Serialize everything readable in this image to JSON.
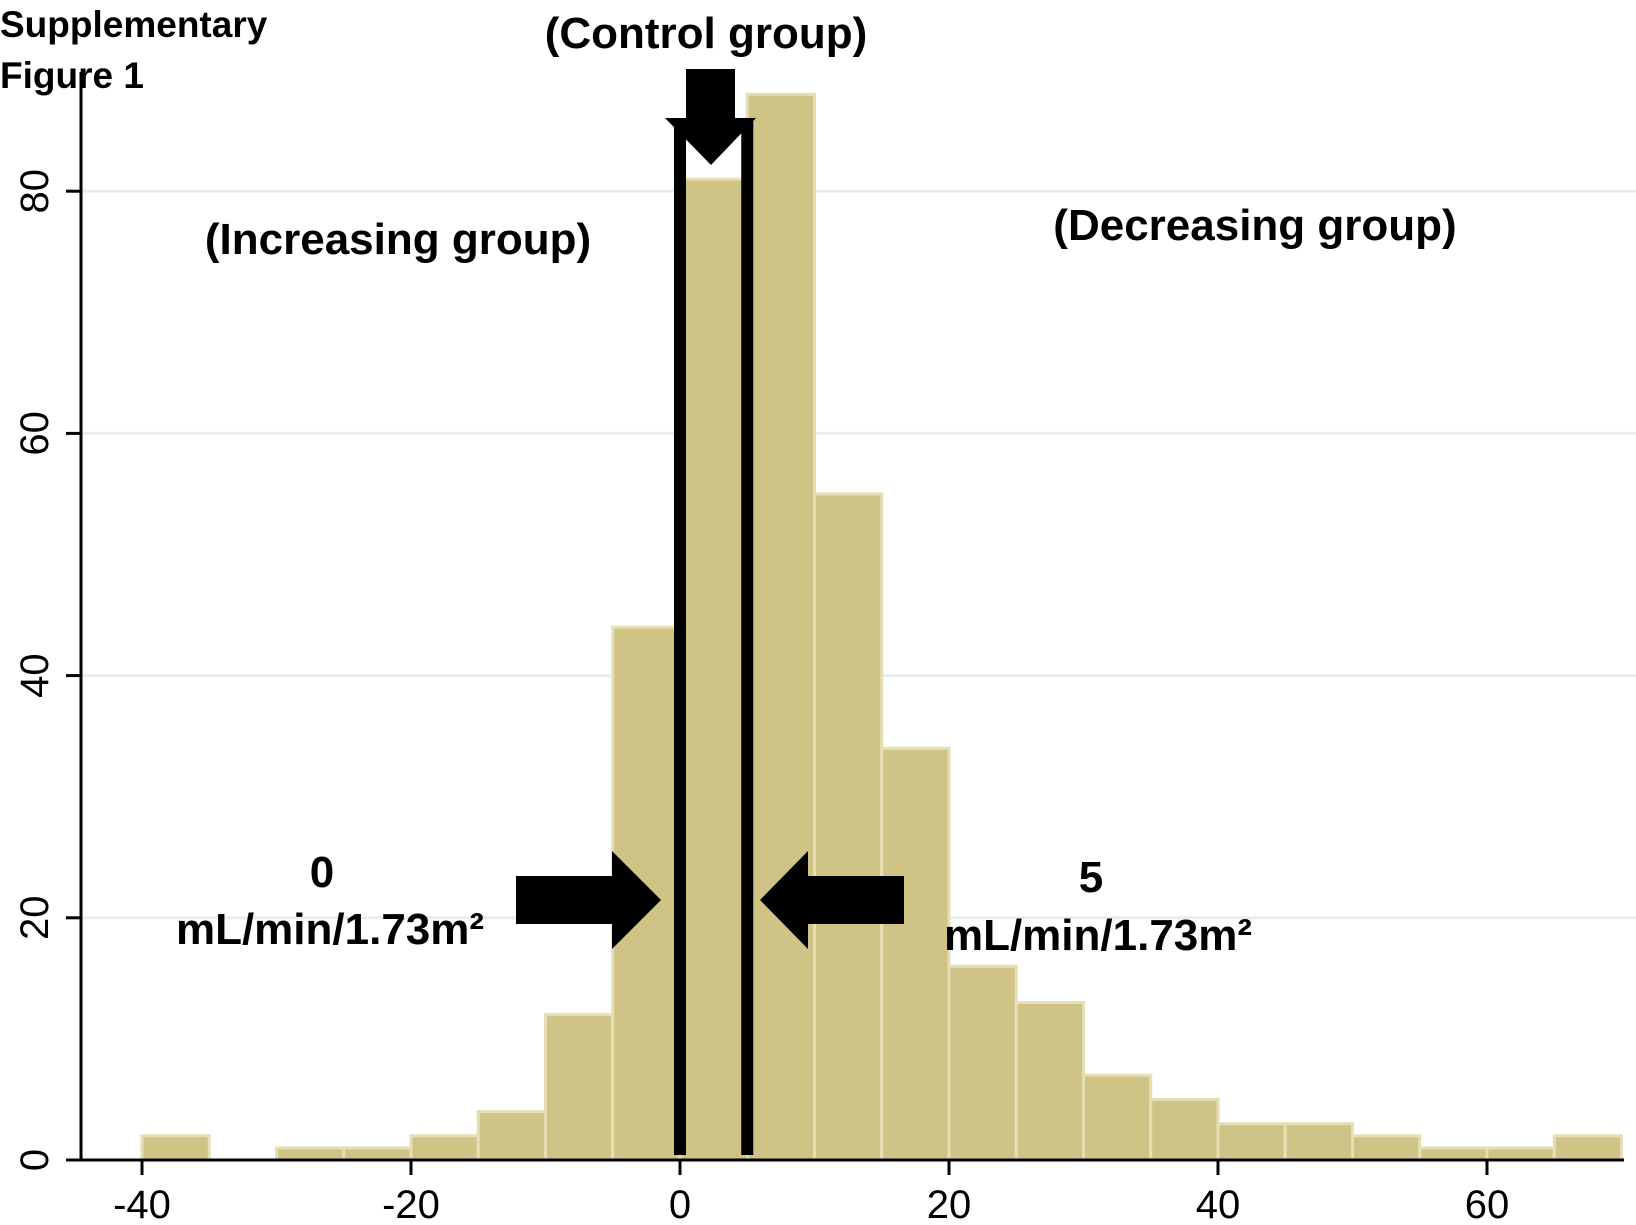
{
  "figure_label_line1": "Supplementary",
  "figure_label_line2": "Figure 1",
  "chart_data": {
    "type": "bar",
    "subtype": "histogram",
    "bin_width": 5,
    "bin_starts": [
      -40,
      -35,
      -30,
      -25,
      -20,
      -15,
      -10,
      -5,
      0,
      5,
      10,
      15,
      20,
      25,
      30,
      35,
      40,
      45,
      50,
      55,
      60,
      65
    ],
    "values": [
      2,
      0,
      1,
      1,
      2,
      4,
      12,
      44,
      81,
      88,
      55,
      34,
      16,
      13,
      7,
      5,
      3,
      3,
      2,
      1,
      1,
      2
    ],
    "xlim": [
      -45,
      70
    ],
    "ylim": [
      0,
      88
    ],
    "x_ticks": [
      "-40",
      "-20",
      "0",
      "20",
      "40",
      "60"
    ],
    "y_ticks": [
      "0",
      "20",
      "40",
      "60",
      "80"
    ],
    "grid": "horizontal",
    "bar_color": "#cfc385",
    "bar_edge_color": "#e6dfb6",
    "cutoff_lines": [
      0,
      5
    ],
    "annotations": {
      "control_group": "(Control group)",
      "increasing_group": "(Increasing group)",
      "decreasing_group": "(Decreasing group)",
      "left_cutoff_value": "0",
      "left_cutoff_unit": "mL/min/1.73m²",
      "right_cutoff_value": "5",
      "right_cutoff_unit": "mL/min/1.73m²"
    }
  }
}
